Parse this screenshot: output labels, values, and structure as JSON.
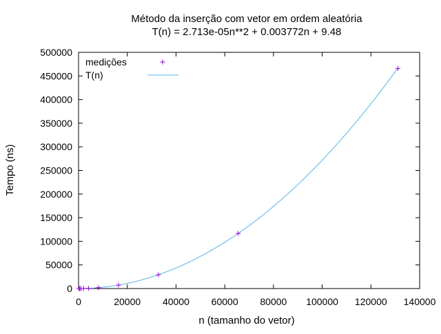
{
  "chart_data": {
    "type": "scatter",
    "title": "Método da inserção com vetor em ordem aleatória",
    "subtitle": "T(n) = 2.713e-05n**2 + 0.003772n + 9.48",
    "xlabel": "n (tamanho do vetor)",
    "ylabel": "Tempo (ns)",
    "xlim": [
      0,
      140000
    ],
    "ylim": [
      0,
      500000
    ],
    "xticks": [
      0,
      20000,
      40000,
      60000,
      80000,
      100000,
      120000,
      140000
    ],
    "yticks": [
      0,
      50000,
      100000,
      150000,
      200000,
      250000,
      300000,
      350000,
      400000,
      450000,
      500000
    ],
    "grid": false,
    "legend_position": "top-left",
    "series": [
      {
        "name": "medições",
        "kind": "points",
        "marker": "+",
        "color": "#9400d3",
        "x": [
          128,
          256,
          512,
          1024,
          2048,
          4096,
          8192,
          16384,
          32768,
          65536,
          131072
        ],
        "y": [
          10,
          12,
          20,
          40,
          130,
          480,
          1850,
          7300,
          29200,
          116600,
          466000
        ]
      },
      {
        "name": "T(n)",
        "kind": "curve",
        "color": "#56b4e9",
        "coefficients": {
          "a": 2.713e-05,
          "b": 0.003772,
          "c": 9.48
        }
      }
    ]
  }
}
